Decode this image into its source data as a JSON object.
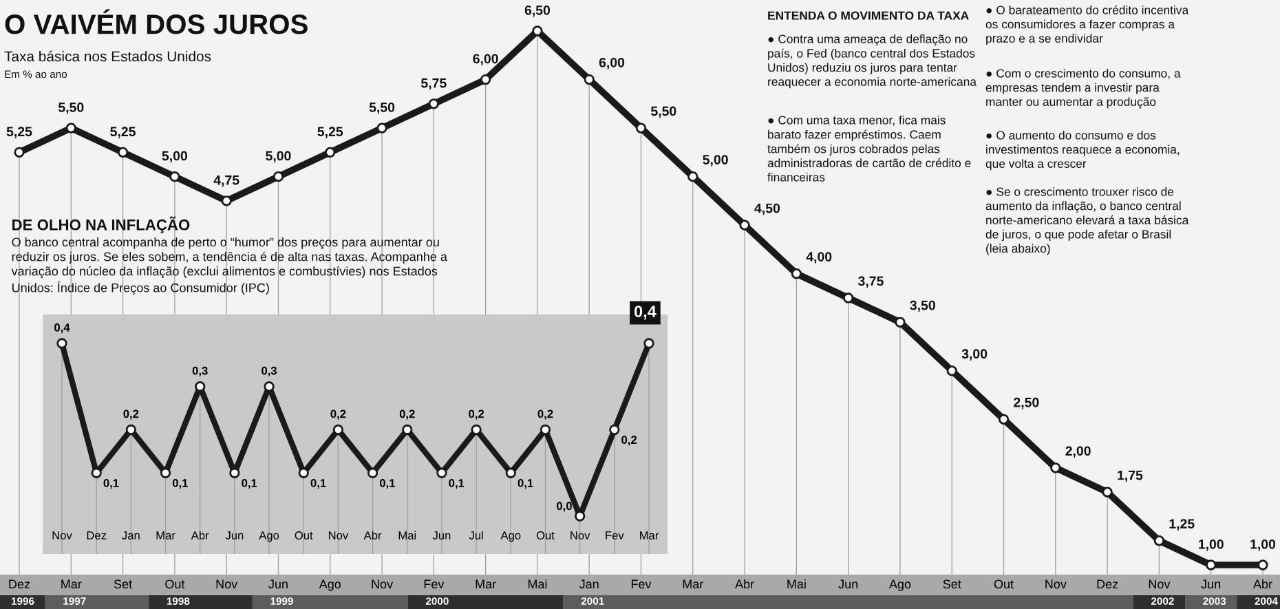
{
  "chart_data": [
    {
      "type": "line",
      "title": "O VAIVÉM DOS JUROS",
      "subtitle": "Taxa básica nos Estados Unidos",
      "ylabel": "Em % ao ano",
      "categories": [
        "Dez",
        "Mar",
        "Set",
        "Out",
        "Nov",
        "Jun",
        "Ago",
        "Nov",
        "Fev",
        "Mar",
        "Mai",
        "Jan",
        "Fev",
        "Mar",
        "Abr",
        "Mai",
        "Jun",
        "Ago",
        "Set",
        "Out",
        "Nov",
        "Dez",
        "Nov",
        "Jun",
        "Abr"
      ],
      "series": [
        {
          "color": "#1a1a1a",
          "values": [
            5.25,
            5.5,
            5.25,
            5.0,
            4.75,
            5.0,
            5.25,
            5.5,
            5.75,
            6.0,
            6.5,
            6.0,
            5.5,
            5.0,
            4.5,
            4.0,
            3.75,
            3.5,
            3.0,
            2.5,
            2.0,
            1.75,
            1.25,
            1.0,
            1.0
          ],
          "value_labels": [
            "5,25",
            "5,50",
            "5,25",
            "5,00",
            "4,75",
            "5,00",
            "5,25",
            "5,50",
            "5,75",
            "6,00",
            "6,50",
            "6,00",
            "5,50",
            "5,00",
            "4,50",
            "4,00",
            "3,75",
            "3,50",
            "3,00",
            "2,50",
            "2,00",
            "1,75",
            "1,25",
            "1,00",
            "1,00"
          ]
        }
      ],
      "marker": "circle",
      "line_style": "solid",
      "tick_labels": "x",
      "grid": "x",
      "annotations": [
        "ENTENDA O MOVIMENTO DA TAXA",
        "● Contra uma ameaça de deflação no\npaís, o Fed (banco central dos Estados\nUnidos) reduziu os juros para tentar\nreaquecer a economia norte-americana",
        "● Com uma taxa menor, fica mais\nbarato fazer empréstimos. Caem\ntambém os juros cobrados pelas\nadministradoras de cartão de crédito e\nfinanceiras",
        "● O barateamento do crédito incentiva\nos consumidores a fazer compras a\nprazo e a se endividar",
        "● Com o crescimento do consumo, a\nempresas tendem a investir para\nmanter ou aumentar a produção",
        "● O aumento do consumo e dos\ninvestimentos reaquece a economia,\nque volta a crescer",
        "● Se o crescimento trouxer risco de\naumento da inflação, o banco central\nnorte-americano elevará a taxa básica\nde juros, o que pode afetar o Brasil\n(leia abaixo)",
        "1996",
        "1997",
        "1998",
        "1999",
        "2000",
        "2001",
        "2002",
        "2003",
        "2004"
      ]
    },
    {
      "type": "line",
      "title": "DE OLHO NA INFLAÇÃO",
      "subtitle": "O banco central acompanha de perto o “humor” dos preços para aumentar ou\nreduzir os juros. Se eles sobem, a tendência é de alta nas taxas. Acompanhe a\nvariação do núcleo da inflação (exclui alimentos e combustívies) nos Estados\nUnidos: Índice de Preços ao Consumidor (IPC)",
      "categories": [
        "Nov",
        "Dez",
        "Jan",
        "Mar",
        "Abr",
        "Jun",
        "Ago",
        "Out",
        "Nov",
        "Abr",
        "Mai",
        "Jun",
        "Jul",
        "Ago",
        "Out",
        "Nov",
        "Fev",
        "Mar"
      ],
      "series": [
        {
          "color": "#1a1a1a",
          "values": [
            0.4,
            0.1,
            0.2,
            0.1,
            0.3,
            0.1,
            0.3,
            0.1,
            0.2,
            0.1,
            0.2,
            0.1,
            0.2,
            0.1,
            0.2,
            0.0,
            0.2,
            0.4
          ],
          "value_labels": [
            "0,4",
            "0,1",
            "0,2",
            "0,1",
            "0,3",
            "0,1",
            "0,3",
            "0,1",
            "0,2",
            "0,1",
            "0,2",
            "0,1",
            "0,2",
            "0,1",
            "0,2",
            "0,0",
            "0,2",
            "0,4"
          ]
        }
      ],
      "marker": "circle",
      "line_style": "solid",
      "tick_labels": "x",
      "grid": "x"
    }
  ]
}
